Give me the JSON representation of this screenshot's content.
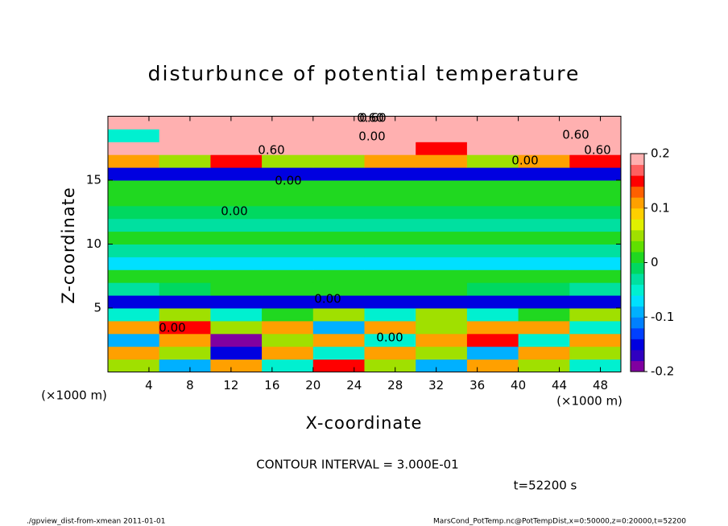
{
  "chart_data": {
    "type": "heatmap",
    "title": "disturbunce of potential temperature",
    "x_label": "X-coordinate",
    "y_label": "Z-coordinate",
    "x_unit": "(×1000 m)",
    "y_unit": "(×1000 m)",
    "contour_interval": "CONTOUR INTERVAL = 3.000E-01",
    "time_label": "t=52200 s",
    "footer_left": "./gpview_dist-from-xmean   2011-01-01",
    "footer_right": "MarsCond_PotTemp.nc@PotTempDist,x=0:50000,z=0:20000,t=52200",
    "contour_labels": [
      "0.60",
      "0.00",
      "0.60",
      "0.00",
      "0.60",
      "0.00",
      "0.00",
      "0.00",
      "0.00",
      "0.00",
      "0.60",
      "0.60"
    ],
    "xlim": [
      0,
      50
    ],
    "ylim": [
      0,
      20
    ],
    "xticks": [
      4,
      8,
      12,
      16,
      20,
      24,
      28,
      32,
      36,
      40,
      44,
      48
    ],
    "yticks": [
      5,
      10,
      15
    ],
    "x_edges": [
      0,
      5,
      10,
      15,
      20,
      25,
      30,
      35,
      40,
      45,
      50
    ],
    "z_edges": [
      0,
      1,
      2,
      3,
      4,
      5,
      6,
      7,
      8,
      9,
      10,
      11,
      12,
      13,
      14,
      15,
      16,
      17,
      18,
      19,
      20
    ],
    "values": [
      [
        0.05,
        -0.1,
        0.1,
        -0.05,
        0.15,
        0.05,
        -0.1,
        0.1,
        0.05,
        -0.05
      ],
      [
        0.1,
        0.05,
        -0.15,
        0.1,
        -0.05,
        0.1,
        0.05,
        -0.1,
        0.1,
        0.05
      ],
      [
        -0.1,
        0.1,
        -0.2,
        0.05,
        0.1,
        -0.05,
        0.1,
        0.15,
        -0.05,
        0.1
      ],
      [
        0.1,
        0.15,
        0.05,
        0.1,
        -0.1,
        0.1,
        0.05,
        0.1,
        0.1,
        -0.05
      ],
      [
        -0.05,
        0.05,
        -0.05,
        0,
        0.05,
        -0.05,
        0.05,
        -0.05,
        0,
        0.05
      ],
      [
        -0.15,
        -0.15,
        -0.15,
        -0.15,
        -0.15,
        -0.15,
        -0.15,
        -0.15,
        -0.15,
        -0.15
      ],
      [
        -0.03,
        -0.02,
        0.01,
        0.02,
        0.02,
        0.01,
        0.02,
        -0.02,
        -0.02,
        -0.03
      ],
      [
        0,
        0,
        0.01,
        0.02,
        0.02,
        0.01,
        0.02,
        0.01,
        0,
        0
      ],
      [
        -0.07,
        -0.07,
        -0.07,
        -0.07,
        -0.07,
        -0.07,
        -0.07,
        -0.07,
        -0.07,
        -0.07
      ],
      [
        -0.03,
        -0.03,
        -0.03,
        -0.03,
        -0.03,
        -0.03,
        -0.03,
        -0.03,
        -0.03,
        -0.03
      ],
      [
        0,
        0,
        0,
        0,
        0,
        0,
        0,
        0,
        0,
        0
      ],
      [
        -0.03,
        -0.03,
        -0.03,
        -0.03,
        -0.03,
        -0.03,
        -0.03,
        -0.03,
        -0.03,
        -0.03
      ],
      [
        -0.02,
        -0.02,
        -0.02,
        -0.02,
        -0.02,
        -0.02,
        -0.02,
        -0.02,
        -0.02,
        -0.02
      ],
      [
        0,
        0,
        0,
        0,
        0,
        0,
        0,
        0,
        0,
        0
      ],
      [
        0.01,
        0.01,
        0.01,
        0.01,
        0.01,
        0.01,
        0.01,
        0.01,
        0.01,
        0.01
      ],
      [
        -0.15,
        -0.15,
        -0.15,
        -0.15,
        -0.15,
        -0.15,
        -0.15,
        -0.15,
        -0.15,
        -0.15
      ],
      [
        0.1,
        0.05,
        0.15,
        0.05,
        0.05,
        0.1,
        0.1,
        0.05,
        0.1,
        0.15
      ],
      [
        0.2,
        0.2,
        0.2,
        0.2,
        0.2,
        0.2,
        0.15,
        0.2,
        0.2,
        0.2
      ],
      [
        -0.05,
        0.2,
        0.2,
        0.2,
        0.2,
        0.2,
        0.2,
        0.2,
        0.2,
        0.2
      ],
      [
        0.2,
        0.2,
        0.2,
        0.2,
        0.2,
        0.2,
        0.2,
        0.2,
        0.2,
        0.2
      ]
    ],
    "clim": [
      -0.2,
      0.2
    ],
    "cticks": [
      0.2,
      0.1,
      0,
      -0.1,
      -0.2
    ],
    "colormap": [
      "#8000a0",
      "#3000c0",
      "#0000e0",
      "#0040ff",
      "#0080ff",
      "#00b0ff",
      "#00e0ff",
      "#00f0d0",
      "#00e0a0",
      "#00d860",
      "#20d820",
      "#60e000",
      "#a0e000",
      "#e0f000",
      "#ffd000",
      "#ffa000",
      "#ff6000",
      "#ff0000",
      "#ff6060",
      "#ffb0b0"
    ]
  }
}
